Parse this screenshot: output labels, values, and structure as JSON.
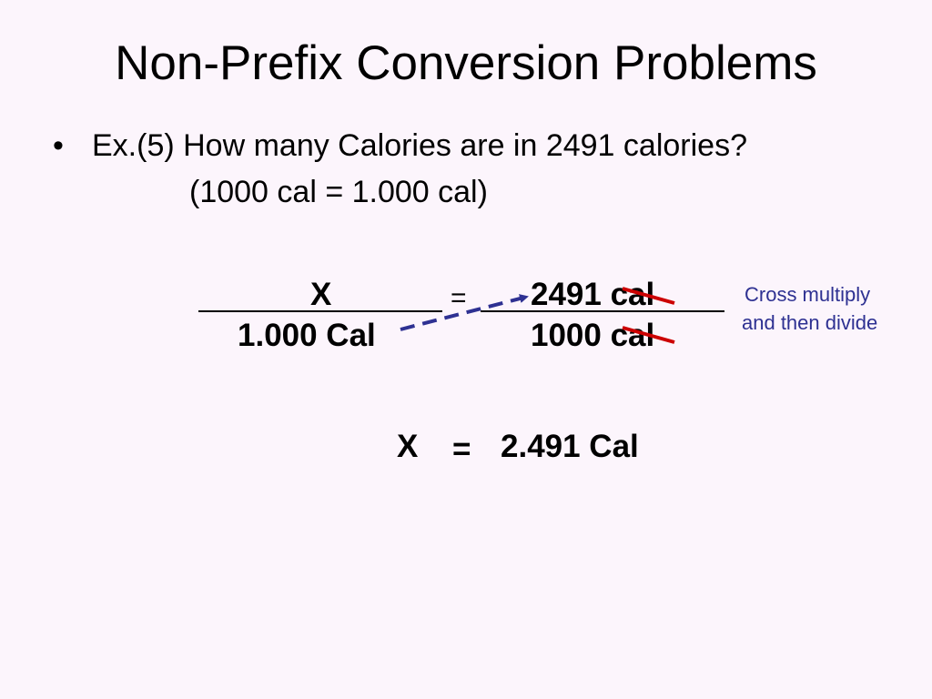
{
  "slide": {
    "title": "Non-Prefix Conversion Problems",
    "bullet_symbol": "•",
    "bullet_line1": "Ex.(5) How many Calories are in 2491 calories?",
    "bullet_line2": "(1000 cal = 1.000 cal)",
    "equation": {
      "left_numerator": "X",
      "left_denominator": "1.000 Cal",
      "equals": "=",
      "right_numerator": "2491 cal",
      "right_denominator": "1000 cal"
    },
    "note_line1": "Cross multiply",
    "note_line2": "and then divide",
    "result": {
      "variable": "X",
      "equals": "=",
      "value": "2.491 Cal"
    },
    "colors": {
      "background": "#fcf5fc",
      "arrow": "#2e3192",
      "strike": "#cc0000",
      "note": "#2e3192"
    }
  }
}
